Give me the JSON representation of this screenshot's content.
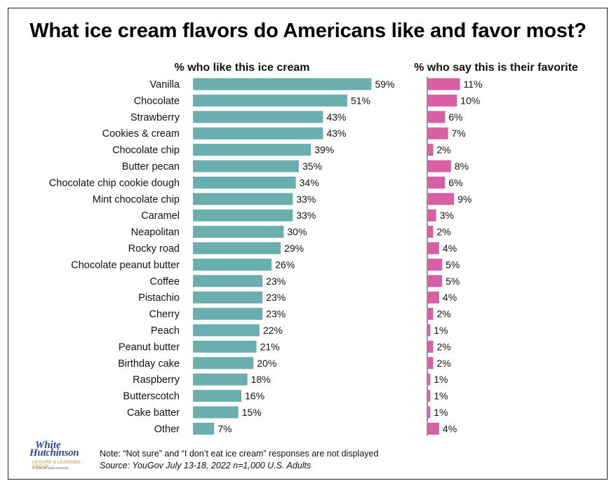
{
  "chart_data": {
    "type": "bar",
    "title": "What ice cream flavors do Americans like and favor most?",
    "panels": [
      {
        "name": "like",
        "heading": "% who like this ice cream",
        "color": "#6aaeae",
        "xlim": [
          0,
          64
        ],
        "values": [
          59,
          51,
          43,
          43,
          39,
          35,
          34,
          33,
          33,
          30,
          29,
          26,
          23,
          23,
          23,
          22,
          21,
          20,
          18,
          16,
          15,
          7
        ]
      },
      {
        "name": "favorite",
        "heading": "% who say this is their favorite",
        "color": "#d85fa4",
        "xlim": [
          0,
          26
        ],
        "values": [
          11,
          10,
          6,
          7,
          2,
          8,
          6,
          9,
          3,
          2,
          4,
          5,
          5,
          4,
          2,
          1,
          2,
          2,
          1,
          1,
          1,
          4
        ]
      }
    ],
    "categories": [
      "Vanilla",
      "Chocolate",
      "Strawberry",
      "Cookies & cream",
      "Chocolate chip",
      "Butter pecan",
      "Chocolate chip cookie dough",
      "Mint chocolate chip",
      "Caramel",
      "Neapolitan",
      "Rocky road",
      "Chocolate peanut butter",
      "Coffee",
      "Pistachio",
      "Cherry",
      "Peach",
      "Peanut butter",
      "Birthday cake",
      "Raspberry",
      "Butterscotch",
      "Cake batter",
      "Other"
    ],
    "value_suffix": "%"
  },
  "footer": {
    "note": "Note: “Not sure” and “I don’t eat ice cream” responses are not displayed",
    "source": "Source: YouGov July 13-18, 2022 n=1,000 U.S. Adults"
  },
  "logo": {
    "line1": "White",
    "line2": "Hutchinson",
    "tagline": "LEISURE & LEARNING GROUP",
    "copyright": "© 2022 all rights reserved"
  }
}
